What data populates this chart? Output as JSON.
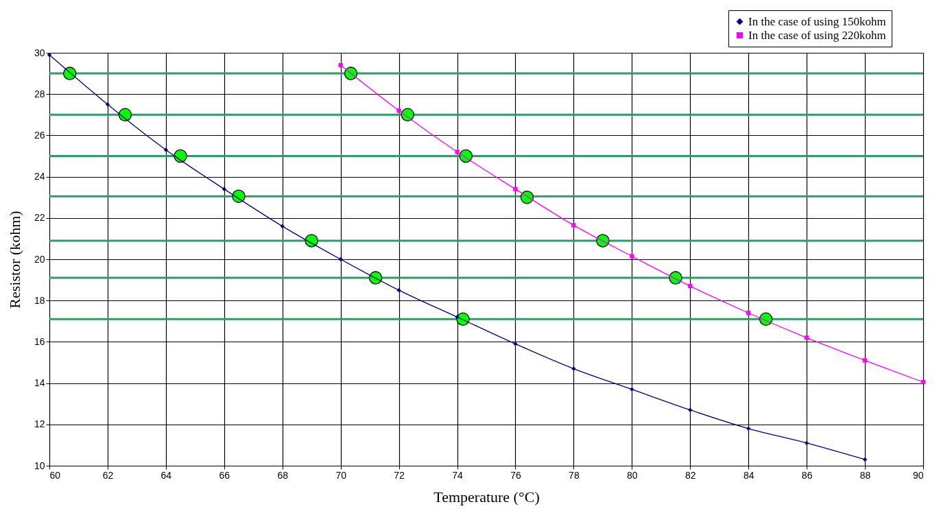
{
  "chart_data": {
    "type": "line",
    "xlabel": "Temperature (°C)",
    "ylabel": "Resistor (kohm)",
    "x": [
      60,
      62,
      64,
      66,
      68,
      70,
      72,
      74,
      76,
      78,
      80,
      82,
      84,
      86,
      88
    ],
    "series": [
      {
        "name": "In the case of using 150kohm",
        "color": "#000080",
        "marker": "diamond",
        "values": [
          29.9,
          27.5,
          25.3,
          23.4,
          21.6,
          20.0,
          18.5,
          17.2,
          15.9,
          14.7,
          13.7,
          12.7,
          11.8,
          11.1,
          10.3
        ]
      },
      {
        "name": "In the case of using 220kohm",
        "color": "#ff00ff",
        "marker": "square",
        "x": [
          70,
          72,
          74,
          76,
          78,
          80,
          82,
          84,
          86,
          88,
          90
        ],
        "values": [
          29.4,
          27.2,
          25.2,
          23.4,
          21.65,
          20.15,
          18.7,
          17.4,
          16.2,
          15.1,
          14.05
        ]
      },
      {
        "type": "scatter",
        "color": "#00ff00",
        "marker": "circle",
        "x": [
          60.7,
          62.6,
          64.5,
          66.5,
          69.0,
          71.2,
          74.2,
          70.35,
          72.3,
          74.3,
          76.4,
          79.0,
          81.5,
          84.6
        ],
        "values": [
          29.0,
          27.0,
          25.0,
          23.05,
          20.9,
          19.1,
          17.1,
          29.0,
          27.0,
          25.0,
          23.0,
          20.9,
          19.1,
          17.1
        ]
      }
    ],
    "ref_lines": [
      {
        "axis": "y",
        "value": 29.0,
        "color": "#339966"
      },
      {
        "axis": "y",
        "value": 27.0,
        "color": "#339966"
      },
      {
        "axis": "y",
        "value": 25.0,
        "color": "#339966"
      },
      {
        "axis": "y",
        "value": 23.05,
        "color": "#339966"
      },
      {
        "axis": "y",
        "value": 20.9,
        "color": "#339966"
      },
      {
        "axis": "y",
        "value": 19.1,
        "color": "#339966"
      },
      {
        "axis": "y",
        "value": 17.1,
        "color": "#339966"
      }
    ],
    "xlim": [
      60,
      90
    ],
    "xticks": [
      60,
      62,
      64,
      66,
      68,
      70,
      72,
      74,
      76,
      78,
      80,
      82,
      84,
      86,
      88,
      90
    ],
    "ylim": [
      10,
      30
    ],
    "yticks": [
      10,
      12,
      14,
      16,
      18,
      20,
      22,
      24,
      26,
      28,
      30
    ],
    "grid": true,
    "legend": "top right",
    "line_style": "solid"
  }
}
